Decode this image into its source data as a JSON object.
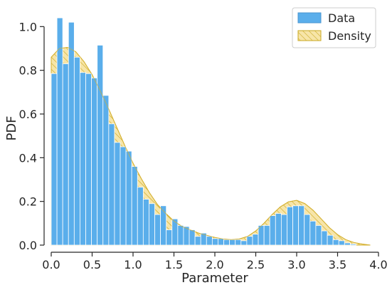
{
  "chart_data": {
    "type": "bar",
    "title": "",
    "xlabel": "Parameter",
    "ylabel": "PDF",
    "xlim": [
      0.0,
      4.0
    ],
    "ylim": [
      0.0,
      1.05
    ],
    "xticks": [
      "0.0",
      "0.5",
      "1.0",
      "1.5",
      "2.0",
      "2.5",
      "3.0",
      "3.5",
      "4.0"
    ],
    "yticks": [
      "0.0",
      "0.2",
      "0.4",
      "0.6",
      "0.8",
      "1.0"
    ],
    "grid": false,
    "legend_position": "top-right",
    "bin_width": 0.0703,
    "bins_start": 0.0,
    "series": [
      {
        "name": "Data",
        "kind": "histogram",
        "color": "#5aaeeb",
        "values": [
          0.785,
          1.04,
          0.83,
          1.02,
          0.86,
          0.79,
          0.785,
          0.765,
          0.915,
          0.685,
          0.555,
          0.47,
          0.45,
          0.43,
          0.36,
          0.265,
          0.21,
          0.19,
          0.14,
          0.18,
          0.07,
          0.12,
          0.09,
          0.085,
          0.07,
          0.04,
          0.055,
          0.04,
          0.03,
          0.03,
          0.025,
          0.025,
          0.025,
          0.02,
          0.04,
          0.05,
          0.09,
          0.09,
          0.135,
          0.145,
          0.14,
          0.175,
          0.18,
          0.18,
          0.14,
          0.11,
          0.09,
          0.065,
          0.045,
          0.025,
          0.02,
          0.01,
          0.005
        ]
      },
      {
        "name": "Density",
        "kind": "kde-area",
        "color": "#f0d060",
        "x": [
          0.0,
          0.1,
          0.2,
          0.3,
          0.4,
          0.5,
          0.6,
          0.7,
          0.8,
          0.9,
          1.0,
          1.1,
          1.2,
          1.3,
          1.4,
          1.5,
          1.6,
          1.7,
          1.8,
          1.9,
          2.0,
          2.1,
          2.2,
          2.3,
          2.4,
          2.5,
          2.6,
          2.7,
          2.8,
          2.9,
          3.0,
          3.1,
          3.2,
          3.3,
          3.4,
          3.5,
          3.6,
          3.7,
          3.8,
          3.9
        ],
        "y": [
          0.86,
          0.9,
          0.905,
          0.885,
          0.84,
          0.78,
          0.705,
          0.625,
          0.54,
          0.455,
          0.375,
          0.305,
          0.24,
          0.185,
          0.145,
          0.11,
          0.085,
          0.07,
          0.055,
          0.045,
          0.035,
          0.028,
          0.025,
          0.028,
          0.04,
          0.065,
          0.1,
          0.14,
          0.175,
          0.198,
          0.205,
          0.19,
          0.16,
          0.12,
          0.08,
          0.048,
          0.025,
          0.012,
          0.005,
          0.0
        ]
      }
    ]
  }
}
